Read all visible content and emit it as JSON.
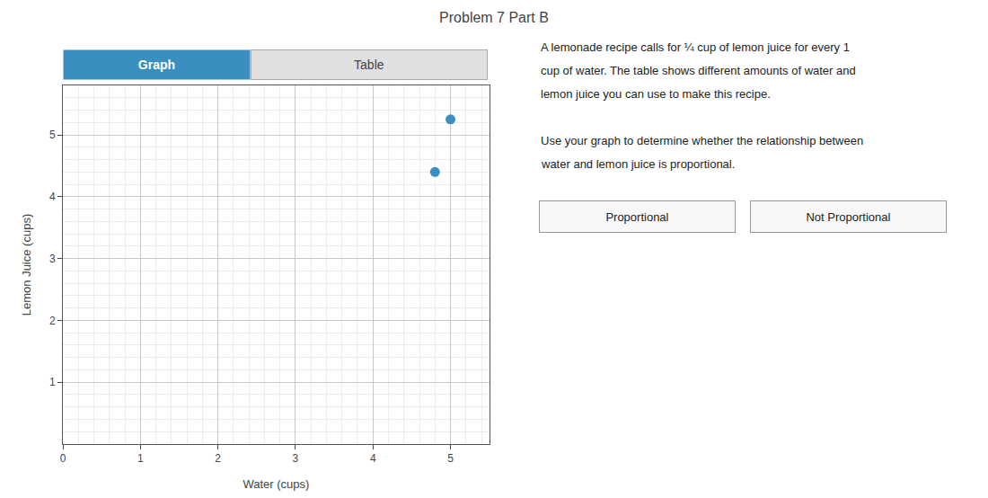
{
  "chart_data": {
    "type": "scatter",
    "title": "Problem 7 Part B",
    "xlabel": "Water (cups)",
    "ylabel": "Lemon Juice (cups)",
    "x": [
      4.8,
      5.0
    ],
    "values": [
      4.4,
      5.25
    ],
    "color": "#3a8fc0",
    "marker": "circle",
    "xlim": [
      0,
      5.5
    ],
    "ylim": [
      0,
      5.8
    ],
    "xticks": [
      0,
      1,
      2,
      3,
      4,
      5
    ],
    "yticks": [
      1,
      2,
      3,
      4,
      5
    ],
    "grid": true,
    "annotations": [
      "Graph",
      "Table",
      "A lemonade recipe calls for ¼ cup of lemon juice for every 1",
      "cup of water. The table shows different amounts of water and",
      "lemon juice you can use to make this recipe.",
      "Use your graph to determine whether the relationship between",
      "water and lemon juice is proportional.",
      "Proportional",
      "Not Proportional"
    ]
  }
}
